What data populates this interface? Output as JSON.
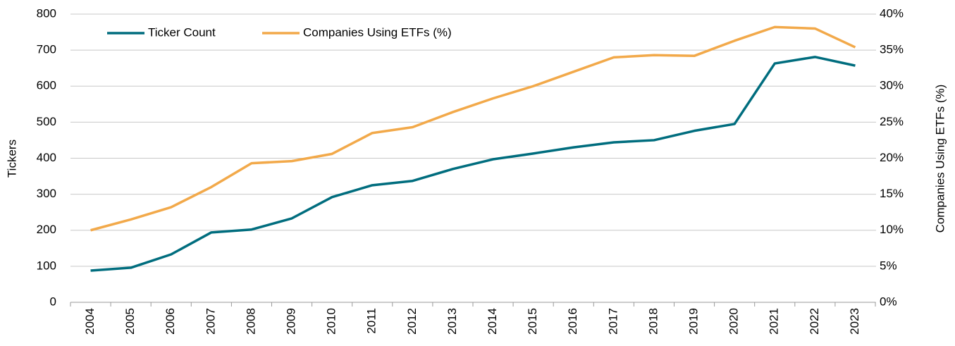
{
  "chart_data": {
    "type": "line",
    "categories": [
      "2004",
      "2005",
      "2006",
      "2007",
      "2008",
      "2009",
      "2010",
      "2011",
      "2012",
      "2013",
      "2014",
      "2015",
      "2016",
      "2017",
      "2018",
      "2019",
      "2020",
      "2021",
      "2022",
      "2023"
    ],
    "series": [
      {
        "name": "Ticker Count",
        "color": "#006d7e",
        "values": [
          88,
          96,
          133,
          194,
          202,
          233,
          292,
          325,
          337,
          370,
          397,
          413,
          430,
          444,
          450,
          476,
          495,
          663,
          681,
          657
        ]
      },
      {
        "name": "Companies Using ETFs (%)",
        "color": "#f2a94a",
        "axis": "y2",
        "values": [
          10.0,
          11.5,
          13.2,
          16.0,
          19.3,
          19.6,
          20.6,
          23.5,
          24.3,
          26.4,
          28.3,
          30.0,
          32.0,
          34.0,
          34.3,
          34.2,
          36.3,
          38.2,
          38.0,
          35.4
        ]
      }
    ],
    "ylabel": "Tickers",
    "y2label": "Companies Using ETFs (%)",
    "ylim": [
      0,
      800
    ],
    "yticks": [
      0,
      100,
      200,
      300,
      400,
      500,
      600,
      700,
      800
    ],
    "y2lim": [
      0,
      40
    ],
    "y2ticks": [
      {
        "value": 0,
        "label": "0%"
      },
      {
        "value": 5,
        "label": "5%"
      },
      {
        "value": 10,
        "label": "10%"
      },
      {
        "value": 15,
        "label": "15%"
      },
      {
        "value": 20,
        "label": "20%"
      },
      {
        "value": 25,
        "label": "25%"
      },
      {
        "value": 30,
        "label": "30%"
      },
      {
        "value": 35,
        "label": "35%"
      },
      {
        "value": 40,
        "label": "40%"
      }
    ],
    "grid": true,
    "legend": "upper left"
  }
}
